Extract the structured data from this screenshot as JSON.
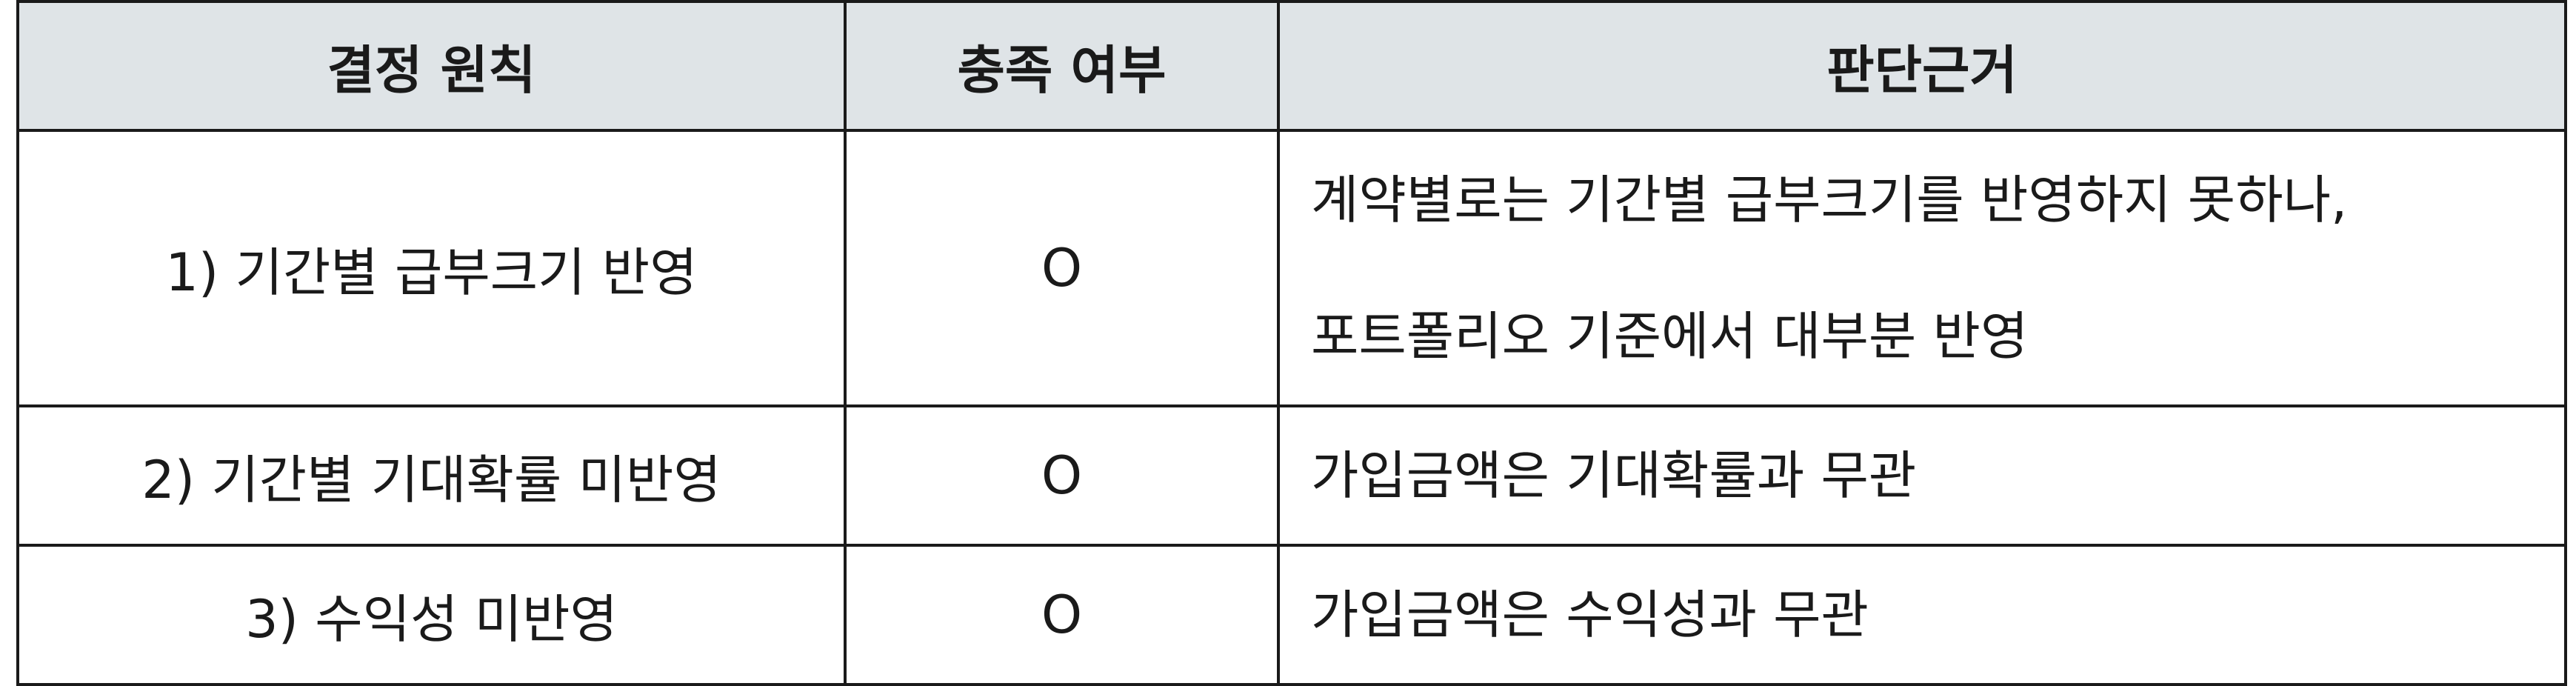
{
  "table": {
    "headers": {
      "principle": "결정 원칙",
      "satisfied": "충족 여부",
      "rationale": "판단근거"
    },
    "rows": [
      {
        "principle": "1) 기간별 급부크기 반영",
        "satisfied": "O",
        "rationale_lines": [
          "계약별로는 기간별 급부크기를 반영하지 못하나,",
          "포트폴리오 기준에서 대부분 반영"
        ]
      },
      {
        "principle": "2) 기간별 기대확률 미반영",
        "satisfied": "O",
        "rationale_lines": [
          "가입금액은 기대확률과 무관"
        ]
      },
      {
        "principle": "3) 수익성 미반영",
        "satisfied": "O",
        "rationale_lines": [
          "가입금액은 수익성과 무관"
        ]
      }
    ]
  }
}
